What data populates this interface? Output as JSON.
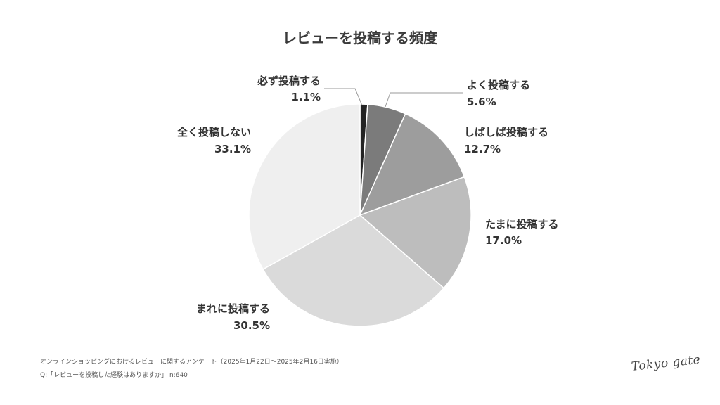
{
  "chart_data": {
    "type": "pie",
    "title": "レビューを投稿する頻度",
    "slices": [
      {
        "label": "必ず投稿する",
        "value": 1.1,
        "value_label": "1.1%",
        "color": "#232323"
      },
      {
        "label": "よく投稿する",
        "value": 5.6,
        "value_label": "5.6%",
        "color": "#7b7b7b"
      },
      {
        "label": "しばしば投稿する",
        "value": 12.7,
        "value_label": "12.7%",
        "color": "#9d9d9d"
      },
      {
        "label": "たまに投稿する",
        "value": 17.0,
        "value_label": "17.0%",
        "color": "#bdbdbd"
      },
      {
        "label": "まれに投稿する",
        "value": 30.5,
        "value_label": "30.5%",
        "color": "#dadada"
      },
      {
        "label": "全く投稿しない",
        "value": 33.1,
        "value_label": "33.1%",
        "color": "#efefef"
      }
    ],
    "start": "top",
    "direction": "clockwise"
  },
  "footer": {
    "source": "オンラインショッピングにおけるレビューに関するアンケート（2025年1月22日〜2025年2月16日実施）",
    "question": "Q:「レビューを投稿した経験はありますか」 n:640"
  },
  "logo": {
    "text": "Tokyo gate"
  }
}
